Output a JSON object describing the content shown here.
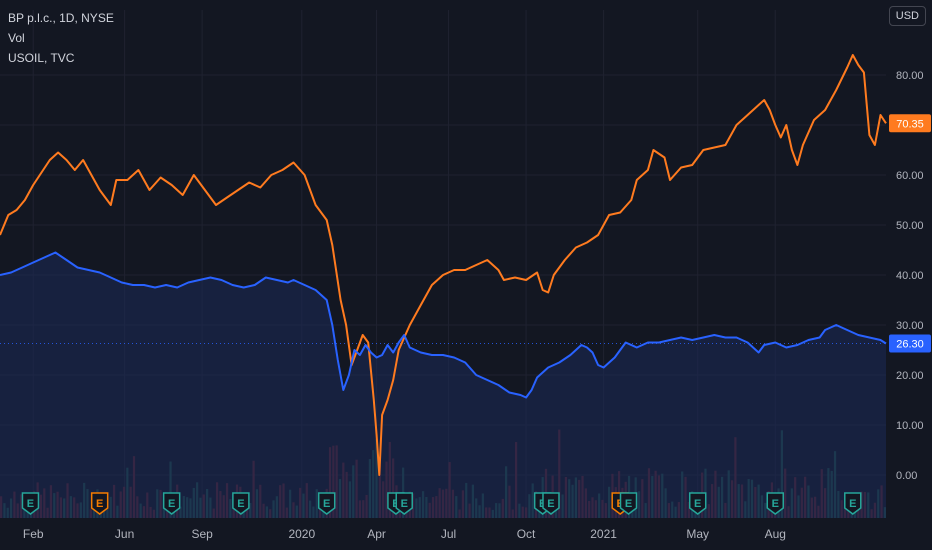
{
  "legend": {
    "title": "BP p.l.c., 1D, NYSE",
    "vol": "Vol",
    "compare": "USOIL, TVC"
  },
  "currency_label": "USD",
  "colors": {
    "background": "#131722",
    "grid": "#1f2230",
    "axis_text": "#b2b5be",
    "bp_line": "#2962ff",
    "bp_fill": "#1c2a57",
    "usoil_line": "#ff7b1f",
    "vol_up": "#1f4f4a",
    "vol_down": "#5c2530",
    "earnings_blue": "#26a69a",
    "earnings_orange": "#f57c00"
  },
  "chart_data": {
    "type": "line",
    "xlabel": "",
    "ylabel": "",
    "ylim": [
      -5,
      90
    ],
    "x_tick_labels": [
      "Feb",
      "Jun",
      "Sep",
      "2020",
      "Apr",
      "Jul",
      "Oct",
      "2021",
      "May",
      "Aug"
    ],
    "y_tick_labels": [
      "0.00",
      "10.00",
      "20.00",
      "30.00",
      "40.00",
      "50.00",
      "60.00",
      "70.00",
      "80.00"
    ],
    "y_ticks": [
      0,
      10,
      20,
      30,
      40,
      50,
      60,
      70,
      80
    ],
    "grid": true,
    "series": [
      {
        "name": "BP p.l.c., 1D, NYSE",
        "last_value_label": "26.30",
        "points": [
          [
            0,
            40.0
          ],
          [
            4,
            40.5
          ],
          [
            8,
            41.5
          ],
          [
            12,
            42.5
          ],
          [
            16,
            43.5
          ],
          [
            20,
            44.5
          ],
          [
            24,
            43.0
          ],
          [
            28,
            41.5
          ],
          [
            32,
            41.0
          ],
          [
            36,
            40.5
          ],
          [
            40,
            39.5
          ],
          [
            44,
            38.5
          ],
          [
            48,
            38.0
          ],
          [
            52,
            38.0
          ],
          [
            56,
            37.5
          ],
          [
            60,
            38.0
          ],
          [
            64,
            37.5
          ],
          [
            68,
            38.5
          ],
          [
            72,
            39.0
          ],
          [
            76,
            39.5
          ],
          [
            80,
            39.0
          ],
          [
            84,
            38.0
          ],
          [
            88,
            37.5
          ],
          [
            92,
            38.0
          ],
          [
            96,
            39.5
          ],
          [
            100,
            39.0
          ],
          [
            104,
            38.5
          ],
          [
            106,
            39.0
          ],
          [
            110,
            38.0
          ],
          [
            114,
            37.0
          ],
          [
            118,
            35.0
          ],
          [
            120,
            30.0
          ],
          [
            122,
            23.0
          ],
          [
            124,
            17.0
          ],
          [
            126,
            20.0
          ],
          [
            128,
            25.0
          ],
          [
            130,
            24.0
          ],
          [
            132,
            26.0
          ],
          [
            134,
            24.5
          ],
          [
            136,
            23.5
          ],
          [
            138,
            24.0
          ],
          [
            140,
            26.0
          ],
          [
            142,
            24.5
          ],
          [
            144,
            26.5
          ],
          [
            146,
            28.0
          ],
          [
            148,
            25.5
          ],
          [
            152,
            24.5
          ],
          [
            156,
            24.0
          ],
          [
            160,
            24.0
          ],
          [
            164,
            23.5
          ],
          [
            168,
            22.5
          ],
          [
            172,
            20.0
          ],
          [
            176,
            19.0
          ],
          [
            180,
            18.0
          ],
          [
            184,
            16.5
          ],
          [
            188,
            16.0
          ],
          [
            190,
            15.5
          ],
          [
            192,
            17.0
          ],
          [
            194,
            19.5
          ],
          [
            198,
            21.5
          ],
          [
            202,
            22.5
          ],
          [
            206,
            24.0
          ],
          [
            210,
            26.0
          ],
          [
            212,
            25.5
          ],
          [
            214,
            24.5
          ],
          [
            216,
            22.0
          ],
          [
            218,
            21.5
          ],
          [
            222,
            23.5
          ],
          [
            226,
            26.5
          ],
          [
            230,
            25.5
          ],
          [
            234,
            26.5
          ],
          [
            238,
            26.5
          ],
          [
            242,
            27.0
          ],
          [
            246,
            27.5
          ],
          [
            250,
            27.0
          ],
          [
            254,
            27.5
          ],
          [
            258,
            28.0
          ],
          [
            262,
            27.5
          ],
          [
            266,
            27.5
          ],
          [
            270,
            26.5
          ],
          [
            272,
            25.5
          ],
          [
            274,
            24.5
          ],
          [
            276,
            26.0
          ],
          [
            280,
            26.5
          ],
          [
            284,
            25.5
          ],
          [
            288,
            26.0
          ],
          [
            292,
            27.0
          ],
          [
            296,
            27.5
          ],
          [
            298,
            29.0
          ],
          [
            302,
            30.0
          ],
          [
            306,
            29.0
          ],
          [
            310,
            28.0
          ],
          [
            314,
            27.5
          ],
          [
            318,
            27.0
          ],
          [
            320,
            26.3
          ]
        ]
      },
      {
        "name": "USOIL, TVC",
        "last_value_label": "70.35",
        "points": [
          [
            0,
            48.0
          ],
          [
            3,
            52.0
          ],
          [
            6,
            53.0
          ],
          [
            9,
            55.0
          ],
          [
            12,
            58.0
          ],
          [
            15,
            60.5
          ],
          [
            18,
            63.0
          ],
          [
            21,
            64.5
          ],
          [
            24,
            63.0
          ],
          [
            27,
            61.0
          ],
          [
            30,
            63.0
          ],
          [
            33,
            60.0
          ],
          [
            36,
            57.0
          ],
          [
            40,
            54.0
          ],
          [
            42,
            59.0
          ],
          [
            46,
            59.0
          ],
          [
            50,
            61.0
          ],
          [
            54,
            57.0
          ],
          [
            58,
            59.5
          ],
          [
            62,
            58.0
          ],
          [
            66,
            56.0
          ],
          [
            70,
            60.0
          ],
          [
            74,
            57.0
          ],
          [
            78,
            54.0
          ],
          [
            82,
            55.5
          ],
          [
            86,
            57.0
          ],
          [
            90,
            58.5
          ],
          [
            94,
            57.5
          ],
          [
            98,
            60.0
          ],
          [
            102,
            61.0
          ],
          [
            106,
            62.5
          ],
          [
            110,
            60.0
          ],
          [
            114,
            54.0
          ],
          [
            118,
            51.0
          ],
          [
            120,
            46.0
          ],
          [
            123,
            35.0
          ],
          [
            125,
            30.0
          ],
          [
            127,
            22.0
          ],
          [
            129,
            25.0
          ],
          [
            131,
            28.0
          ],
          [
            133,
            26.5
          ],
          [
            135,
            15.0
          ],
          [
            136,
            8.0
          ],
          [
            137,
            0.0
          ],
          [
            138,
            12.0
          ],
          [
            140,
            15.0
          ],
          [
            142,
            19.0
          ],
          [
            144,
            25.0
          ],
          [
            148,
            30.0
          ],
          [
            152,
            34.0
          ],
          [
            156,
            38.0
          ],
          [
            160,
            40.0
          ],
          [
            164,
            41.0
          ],
          [
            168,
            41.0
          ],
          [
            172,
            42.0
          ],
          [
            176,
            43.0
          ],
          [
            180,
            41.0
          ],
          [
            182,
            39.0
          ],
          [
            186,
            39.5
          ],
          [
            190,
            39.0
          ],
          [
            194,
            40.5
          ],
          [
            196,
            37.0
          ],
          [
            198,
            36.5
          ],
          [
            200,
            40.0
          ],
          [
            204,
            43.0
          ],
          [
            208,
            45.5
          ],
          [
            212,
            46.5
          ],
          [
            216,
            48.0
          ],
          [
            220,
            52.0
          ],
          [
            224,
            52.5
          ],
          [
            228,
            55.0
          ],
          [
            230,
            59.0
          ],
          [
            234,
            61.0
          ],
          [
            236,
            65.0
          ],
          [
            240,
            63.5
          ],
          [
            242,
            59.0
          ],
          [
            246,
            61.5
          ],
          [
            250,
            62.0
          ],
          [
            254,
            65.0
          ],
          [
            258,
            65.5
          ],
          [
            262,
            66.0
          ],
          [
            266,
            70.0
          ],
          [
            270,
            72.0
          ],
          [
            274,
            74.0
          ],
          [
            276,
            75.0
          ],
          [
            278,
            73.0
          ],
          [
            280,
            70.0
          ],
          [
            282,
            67.5
          ],
          [
            284,
            70.0
          ],
          [
            286,
            65.0
          ],
          [
            288,
            62.0
          ],
          [
            290,
            66.0
          ],
          [
            294,
            71.0
          ],
          [
            298,
            73.0
          ],
          [
            302,
            77.0
          ],
          [
            306,
            81.5
          ],
          [
            308,
            84.0
          ],
          [
            310,
            82.0
          ],
          [
            312,
            80.5
          ],
          [
            314,
            68.0
          ],
          [
            316,
            66.0
          ],
          [
            318,
            72.0
          ],
          [
            320,
            70.35
          ]
        ]
      }
    ],
    "volume_down_bar_count": 55,
    "earnings_markers": [
      {
        "label": "E",
        "kind": "blue",
        "t": 11
      },
      {
        "label": "E",
        "kind": "orange",
        "t": 36
      },
      {
        "label": "E",
        "kind": "blue",
        "t": 62
      },
      {
        "label": "E",
        "kind": "blue",
        "t": 87
      },
      {
        "label": "E",
        "kind": "blue",
        "t": 118
      },
      {
        "label": "E",
        "kind": "blue",
        "t": 143
      },
      {
        "label": "E",
        "kind": "blue",
        "t": 146
      },
      {
        "label": "E",
        "kind": "blue",
        "t": 196
      },
      {
        "label": "E",
        "kind": "blue",
        "t": 199
      },
      {
        "label": "E",
        "kind": "orange",
        "t": 224
      },
      {
        "label": "E",
        "kind": "blue",
        "t": 227
      },
      {
        "label": "E",
        "kind": "blue",
        "t": 252
      },
      {
        "label": "E",
        "kind": "blue",
        "t": 280
      },
      {
        "label": "E",
        "kind": "blue",
        "t": 308
      }
    ],
    "x_tick_positions": [
      12,
      45,
      73,
      109,
      136,
      162,
      190,
      218,
      252,
      280
    ],
    "t_range": [
      0,
      320
    ]
  }
}
